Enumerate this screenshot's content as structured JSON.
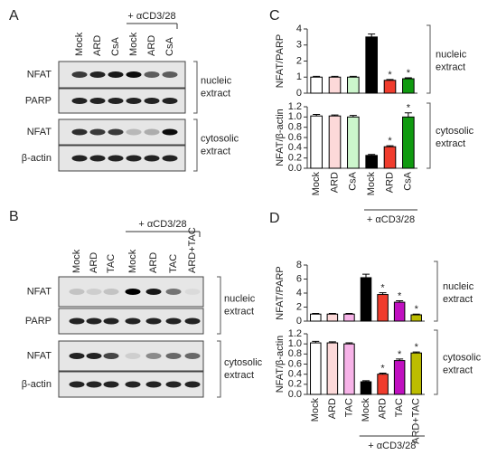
{
  "blots": [
    {
      "panel": "A",
      "treatment": "+ αCD3/28",
      "lanes": [
        "Mock",
        "ARD",
        "CsA",
        "Mock",
        "ARD",
        "CsA"
      ],
      "rows": [
        "NFAT",
        "PARP",
        "NFAT",
        "β-actin"
      ],
      "extracts": [
        [
          "nucleic",
          "extract"
        ],
        [
          "cytosolic",
          "extract"
        ]
      ]
    },
    {
      "panel": "B",
      "treatment": "+ αCD3/28",
      "lanes": [
        "Mock",
        "ARD",
        "TAC",
        "Mock",
        "ARD",
        "TAC",
        "ARD+TAC"
      ],
      "rows": [
        "NFAT",
        "PARP",
        "NFAT",
        "β-actin"
      ],
      "extracts": [
        [
          "nucleic",
          "extract"
        ],
        [
          "cytosolic",
          "extract"
        ]
      ]
    }
  ],
  "chart_data": [
    {
      "type": "bar",
      "panel": "C",
      "y_label": "NFAT/PARP",
      "side_label": [
        "nucleic",
        "extract"
      ],
      "categories": [
        null,
        null,
        null,
        null,
        null,
        null
      ],
      "values": [
        1,
        1,
        1,
        3.5,
        0.8,
        0.9
      ],
      "errors": [
        0.05,
        0.05,
        0.05,
        0.18,
        0.05,
        0.06
      ],
      "significance": [
        null,
        null,
        null,
        null,
        "*",
        "*"
      ],
      "colors": [
        "#ffffff",
        "#fcd9d9",
        "#ccf5cc",
        "#000000",
        "#f03c2d",
        "#109a10"
      ],
      "ylim": [
        0,
        4
      ],
      "yticks": [
        0,
        1,
        2,
        3,
        4
      ]
    },
    {
      "type": "bar",
      "y_label": "NFAT/β-actin",
      "side_label": [
        "cytosolic",
        "extract"
      ],
      "categories": [
        "Mock",
        "ARD",
        "CsA",
        "Mock",
        "ARD",
        "CsA"
      ],
      "group_label": "+ αCD3/28",
      "values": [
        1.02,
        1.02,
        1.0,
        0.25,
        0.42,
        1.0
      ],
      "errors": [
        0.03,
        0.02,
        0.03,
        0.02,
        0.02,
        0.08
      ],
      "significance": [
        null,
        null,
        null,
        null,
        "*",
        "*"
      ],
      "colors": [
        "#ffffff",
        "#fcd9d9",
        "#ccf5cc",
        "#000000",
        "#f03c2d",
        "#109a10"
      ],
      "ylim": [
        0,
        1.2
      ],
      "yticks": [
        {
          "value": 0,
          "label": "0.0"
        },
        0.2,
        0.4,
        0.6,
        0.8,
        {
          "value": 1,
          "label": "1.0"
        },
        1.2
      ]
    },
    {
      "type": "bar",
      "panel": "D",
      "y_label": "NFAT/PARP",
      "side_label": [
        "nucleic",
        "extract"
      ],
      "categories": [
        null,
        null,
        null,
        null,
        null,
        null,
        null
      ],
      "values": [
        1,
        1,
        1,
        6.2,
        3.8,
        2.7,
        0.9
      ],
      "errors": [
        0.1,
        0.1,
        0.1,
        0.5,
        0.25,
        0.2,
        0.1
      ],
      "significance": [
        null,
        null,
        null,
        null,
        "*",
        "*",
        "*"
      ],
      "colors": [
        "#ffffff",
        "#fcd9d9",
        "#f7b3e8",
        "#000000",
        "#f03c2d",
        "#c010c0",
        "#bcbc00"
      ],
      "ylim": [
        0,
        8
      ],
      "yticks": [
        0,
        2,
        4,
        6,
        8
      ]
    },
    {
      "type": "bar",
      "y_label": "NFAT/β-actin",
      "side_label": [
        "cytosolic",
        "extract"
      ],
      "categories": [
        "Mock",
        "ARD",
        "TAC",
        "Mock",
        "ARD",
        "TAC",
        "ARD+TAC"
      ],
      "group_label": "+ αCD3/28",
      "values": [
        1.02,
        1.02,
        1.0,
        0.25,
        0.4,
        0.67,
        0.82
      ],
      "errors": [
        0.03,
        0.02,
        0.02,
        0.02,
        0.02,
        0.03,
        0.02
      ],
      "significance": [
        null,
        null,
        null,
        null,
        "*",
        "*",
        "*"
      ],
      "colors": [
        "#ffffff",
        "#fcd9d9",
        "#f7b3e8",
        "#000000",
        "#f03c2d",
        "#c010c0",
        "#bcbc00"
      ],
      "ylim": [
        0,
        1.2
      ],
      "yticks": [
        {
          "value": 0,
          "label": "0.0"
        },
        0.2,
        0.4,
        0.6,
        0.8,
        {
          "value": 1,
          "label": "1.0"
        },
        1.2
      ]
    }
  ]
}
